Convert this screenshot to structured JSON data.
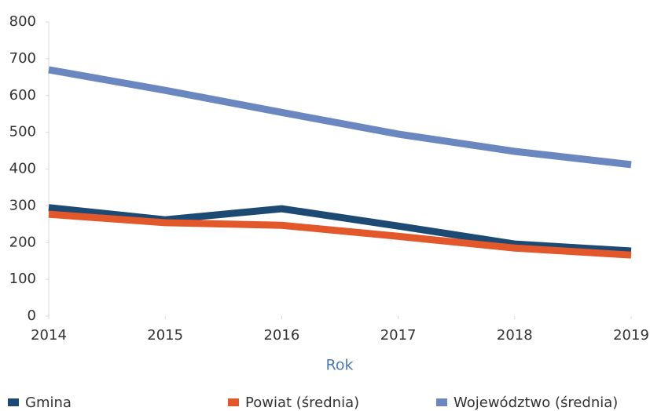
{
  "chart_data": {
    "type": "line",
    "x": [
      2014,
      2015,
      2016,
      2017,
      2018,
      2019
    ],
    "xlim": [
      2014,
      2019
    ],
    "xticks": [
      2014,
      2015,
      2016,
      2017,
      2018,
      2019
    ],
    "ylim": [
      0,
      800
    ],
    "yticks": [
      0,
      100,
      200,
      300,
      400,
      500,
      600,
      700,
      800
    ],
    "xlabel": "Rok",
    "grid": false,
    "legend": "bottom",
    "series": [
      {
        "name": "Gmina",
        "color": "#1d4a73",
        "values": [
          295,
          262,
          292,
          245,
          196,
          177
        ]
      },
      {
        "name": "Powiat (średnia)",
        "color": "#e2582a",
        "values": [
          277,
          254,
          247,
          217,
          185,
          166
        ]
      },
      {
        "name": "Województwo (średnia)",
        "color": "#6a87c0",
        "values": [
          670,
          614,
          554,
          495,
          448,
          412
        ]
      }
    ]
  }
}
